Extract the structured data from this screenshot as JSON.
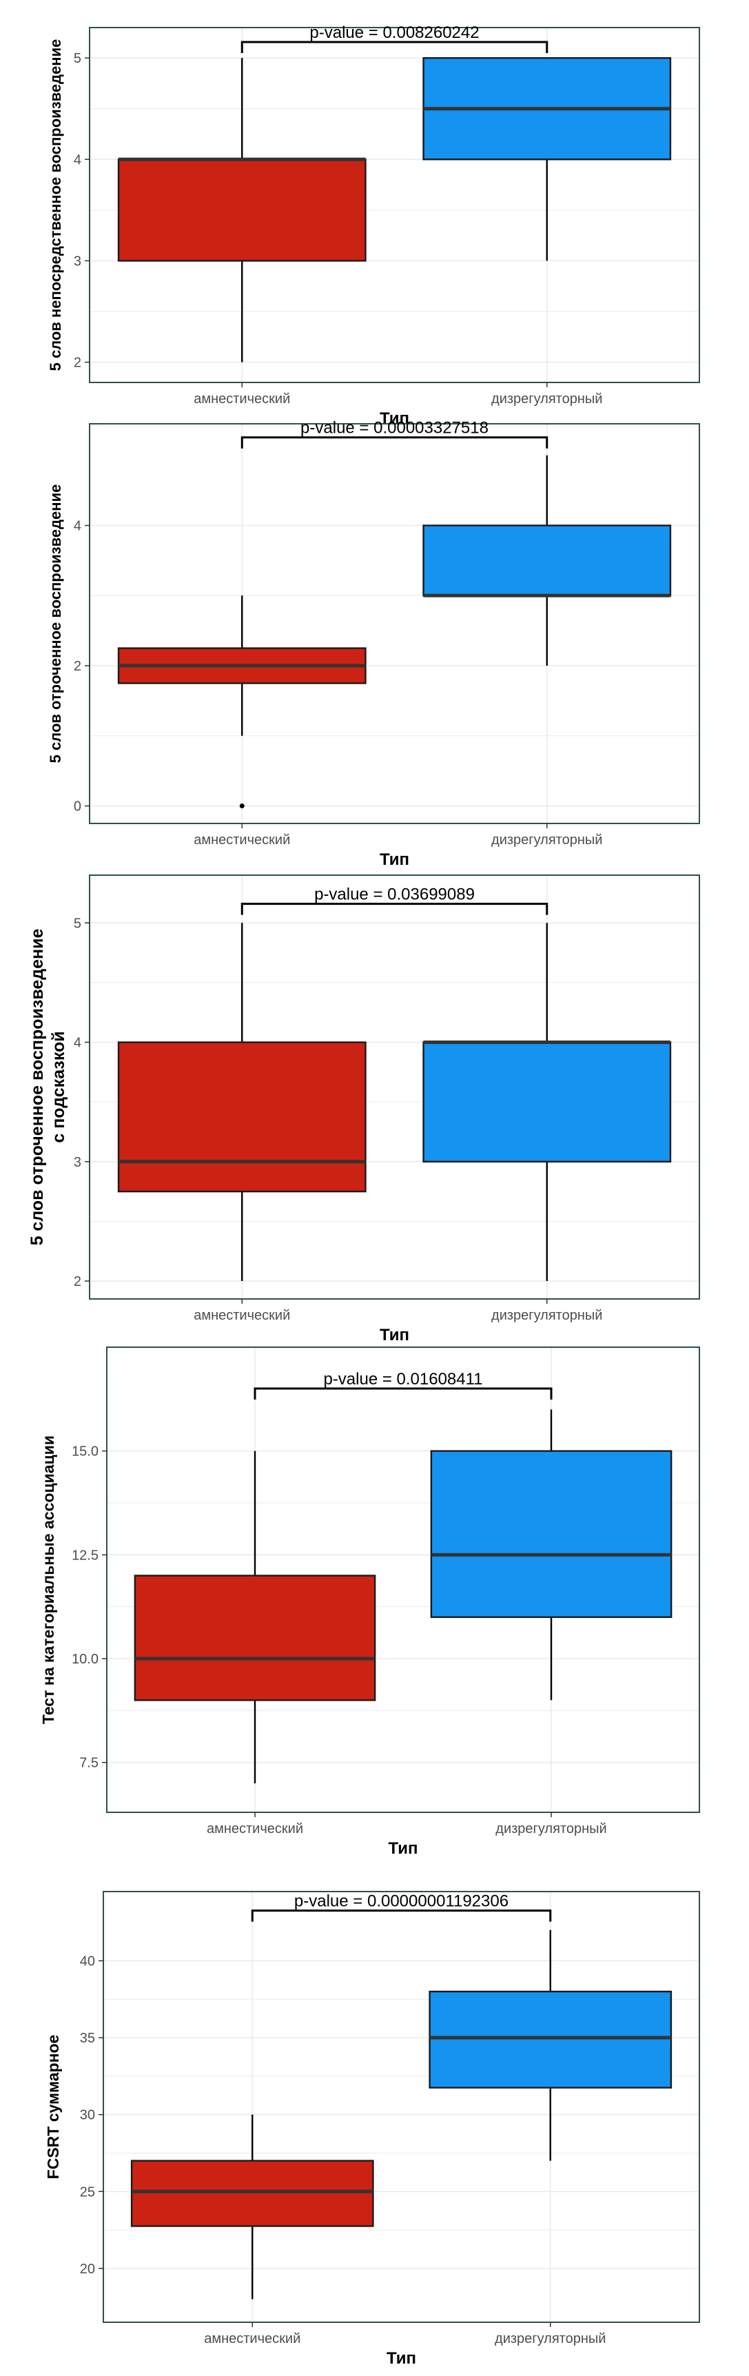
{
  "colors": {
    "amnestic": "#cc2214",
    "dysregulatory": "#1493f0",
    "panel_border": "#2f4f4f",
    "grid": "#ebebeb",
    "median_line": "#333333"
  },
  "chart_data": [
    {
      "type": "box",
      "xlabel": "Тип",
      "ylabel": [
        "5 слов непосредственное воспроизведение"
      ],
      "categories": [
        "амнестический",
        "дизрегуляторный"
      ],
      "ylim": [
        1.8,
        5.3
      ],
      "yticks": [
        2,
        3,
        4,
        5
      ],
      "ytick_labels": [
        "2",
        "3",
        "4",
        "5"
      ],
      "grid": true,
      "pvalue_label": "p-value =  0.008260242",
      "series": [
        {
          "whisker_low": 2,
          "q1": 3,
          "median": 4,
          "q3": 4,
          "whisker_high": 5,
          "outliers": []
        },
        {
          "whisker_low": 3,
          "q1": 4,
          "median": 4.5,
          "q3": 5,
          "whisker_high": 5,
          "outliers": []
        }
      ]
    },
    {
      "type": "box",
      "xlabel": "Тип",
      "ylabel": [
        "5 слов отроченное воспроизведение"
      ],
      "categories": [
        "амнестический",
        "дизрегуляторный"
      ],
      "ylim": [
        -0.25,
        5.45
      ],
      "yticks": [
        0,
        2,
        4
      ],
      "ytick_labels": [
        "0",
        "2",
        "4"
      ],
      "grid": true,
      "pvalue_label": "p-value =  0.00003327518",
      "series": [
        {
          "whisker_low": 1,
          "q1": 1.75,
          "median": 2,
          "q3": 2.25,
          "whisker_high": 3,
          "outliers": [
            0
          ]
        },
        {
          "whisker_low": 2,
          "q1": 3,
          "median": 3,
          "q3": 4,
          "whisker_high": 5,
          "outliers": []
        }
      ]
    },
    {
      "type": "box",
      "xlabel": "Тип",
      "ylabel": [
        "5 слов отроченное воспроизведение",
        "с подсказкой"
      ],
      "categories": [
        "амнестический",
        "дизрегуляторный"
      ],
      "ylim": [
        1.85,
        5.4
      ],
      "yticks": [
        2,
        3,
        4,
        5
      ],
      "ytick_labels": [
        "2",
        "3",
        "4",
        "5"
      ],
      "grid": true,
      "pvalue_label": "p-value =  0.03699089",
      "series": [
        {
          "whisker_low": 2,
          "q1": 2.75,
          "median": 3,
          "q3": 4,
          "whisker_high": 5,
          "outliers": []
        },
        {
          "whisker_low": 2,
          "q1": 3,
          "median": 4,
          "q3": 4,
          "whisker_high": 5,
          "outliers": []
        }
      ]
    },
    {
      "type": "box",
      "xlabel": "Тип",
      "ylabel": [
        "Тест на категориальные ассоциации"
      ],
      "categories": [
        "амнестический",
        "дизрегуляторный"
      ],
      "ylim": [
        6.3,
        17.5
      ],
      "yticks": [
        7.5,
        10,
        12.5,
        15
      ],
      "ytick_labels": [
        "7.5",
        "10.0",
        "12.5",
        "15.0"
      ],
      "grid": true,
      "pvalue_label": "p-value =  0.01608411",
      "series": [
        {
          "whisker_low": 7,
          "q1": 9,
          "median": 10,
          "q3": 12,
          "whisker_high": 15,
          "outliers": []
        },
        {
          "whisker_low": 9,
          "q1": 11,
          "median": 12.5,
          "q3": 15,
          "whisker_high": 16,
          "outliers": []
        }
      ]
    },
    {
      "type": "box",
      "xlabel": "Тип",
      "ylabel": [
        "FCSRT суммарное"
      ],
      "categories": [
        "амнестический",
        "дизрегуляторный"
      ],
      "ylim": [
        16.5,
        44.5
      ],
      "yticks": [
        20,
        25,
        30,
        35,
        40
      ],
      "ytick_labels": [
        "20",
        "25",
        "30",
        "35",
        "40"
      ],
      "grid": true,
      "pvalue_label": "p-value =  0.00000001192306",
      "series": [
        {
          "whisker_low": 18,
          "q1": 22.75,
          "median": 25,
          "q3": 27,
          "whisker_high": 30,
          "outliers": []
        },
        {
          "whisker_low": 27,
          "q1": 31.75,
          "median": 35,
          "q3": 38,
          "whisker_high": 42,
          "outliers": []
        }
      ]
    }
  ]
}
